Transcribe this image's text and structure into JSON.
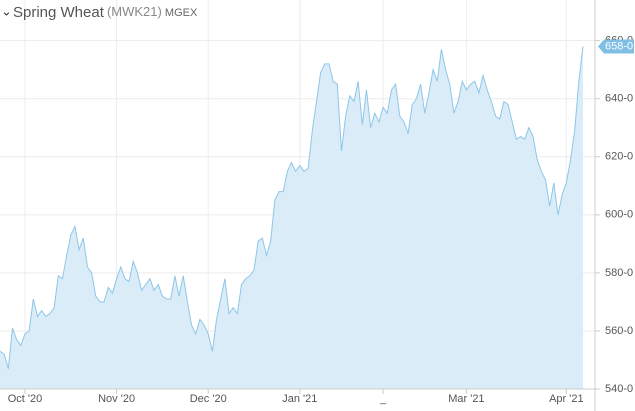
{
  "chart_data": {
    "type": "area",
    "title": "Spring Wheat",
    "symbol": "(MWK21)",
    "exchange": "MGEX",
    "values": [
      553,
      552,
      547,
      561,
      557,
      555,
      559,
      560,
      571,
      565,
      567,
      565,
      566,
      568,
      579,
      578,
      586,
      593,
      596,
      588,
      592,
      582,
      580,
      572,
      570,
      570,
      575,
      573,
      578,
      582,
      578,
      577,
      584,
      580,
      574,
      576,
      578,
      574,
      576,
      572,
      571,
      571,
      579,
      572,
      579,
      570,
      562,
      559,
      564,
      562,
      559,
      553,
      564,
      571,
      578,
      566,
      568,
      566,
      576,
      578,
      579,
      581,
      591,
      592,
      586,
      591,
      605,
      608,
      608,
      615,
      618,
      615,
      617,
      615,
      616,
      629,
      639,
      649,
      652,
      652,
      646,
      645,
      622,
      634,
      641,
      639,
      646,
      631,
      643,
      630,
      635,
      632,
      637,
      635,
      643,
      645,
      634,
      632,
      628,
      638,
      640,
      645,
      635,
      642,
      650,
      646,
      657,
      650,
      645,
      635,
      639,
      646,
      643,
      645,
      646,
      642,
      648,
      643,
      639,
      634,
      633,
      639,
      638,
      632,
      626,
      627,
      626,
      630,
      627,
      619,
      615,
      612,
      603,
      611,
      600,
      607,
      611,
      619,
      629,
      646,
      658
    ],
    "xticks": [
      {
        "value": 6,
        "label": "Oct '20"
      },
      {
        "value": 28,
        "label": "Nov '20"
      },
      {
        "value": 50,
        "label": "Dec '20"
      },
      {
        "value": 72,
        "label": "Jan '21"
      },
      {
        "value": 92,
        "label": "_"
      },
      {
        "value": 112,
        "label": "Mar '21"
      },
      {
        "value": 136,
        "label": "Apr '21"
      }
    ],
    "ylim": [
      540,
      674
    ],
    "yticks": [
      {
        "value": 540,
        "label": "540-0"
      },
      {
        "value": 560,
        "label": "560-0"
      },
      {
        "value": 580,
        "label": "580-0"
      },
      {
        "value": 600,
        "label": "600-0"
      },
      {
        "value": 620,
        "label": "620-0"
      },
      {
        "value": 640,
        "label": "640-0"
      },
      {
        "value": 660,
        "label": "660-0"
      }
    ],
    "last_price": {
      "value": 658,
      "label": "658-0"
    },
    "color": "#8ec6e8",
    "fill": "#daecf8",
    "grid": true
  }
}
